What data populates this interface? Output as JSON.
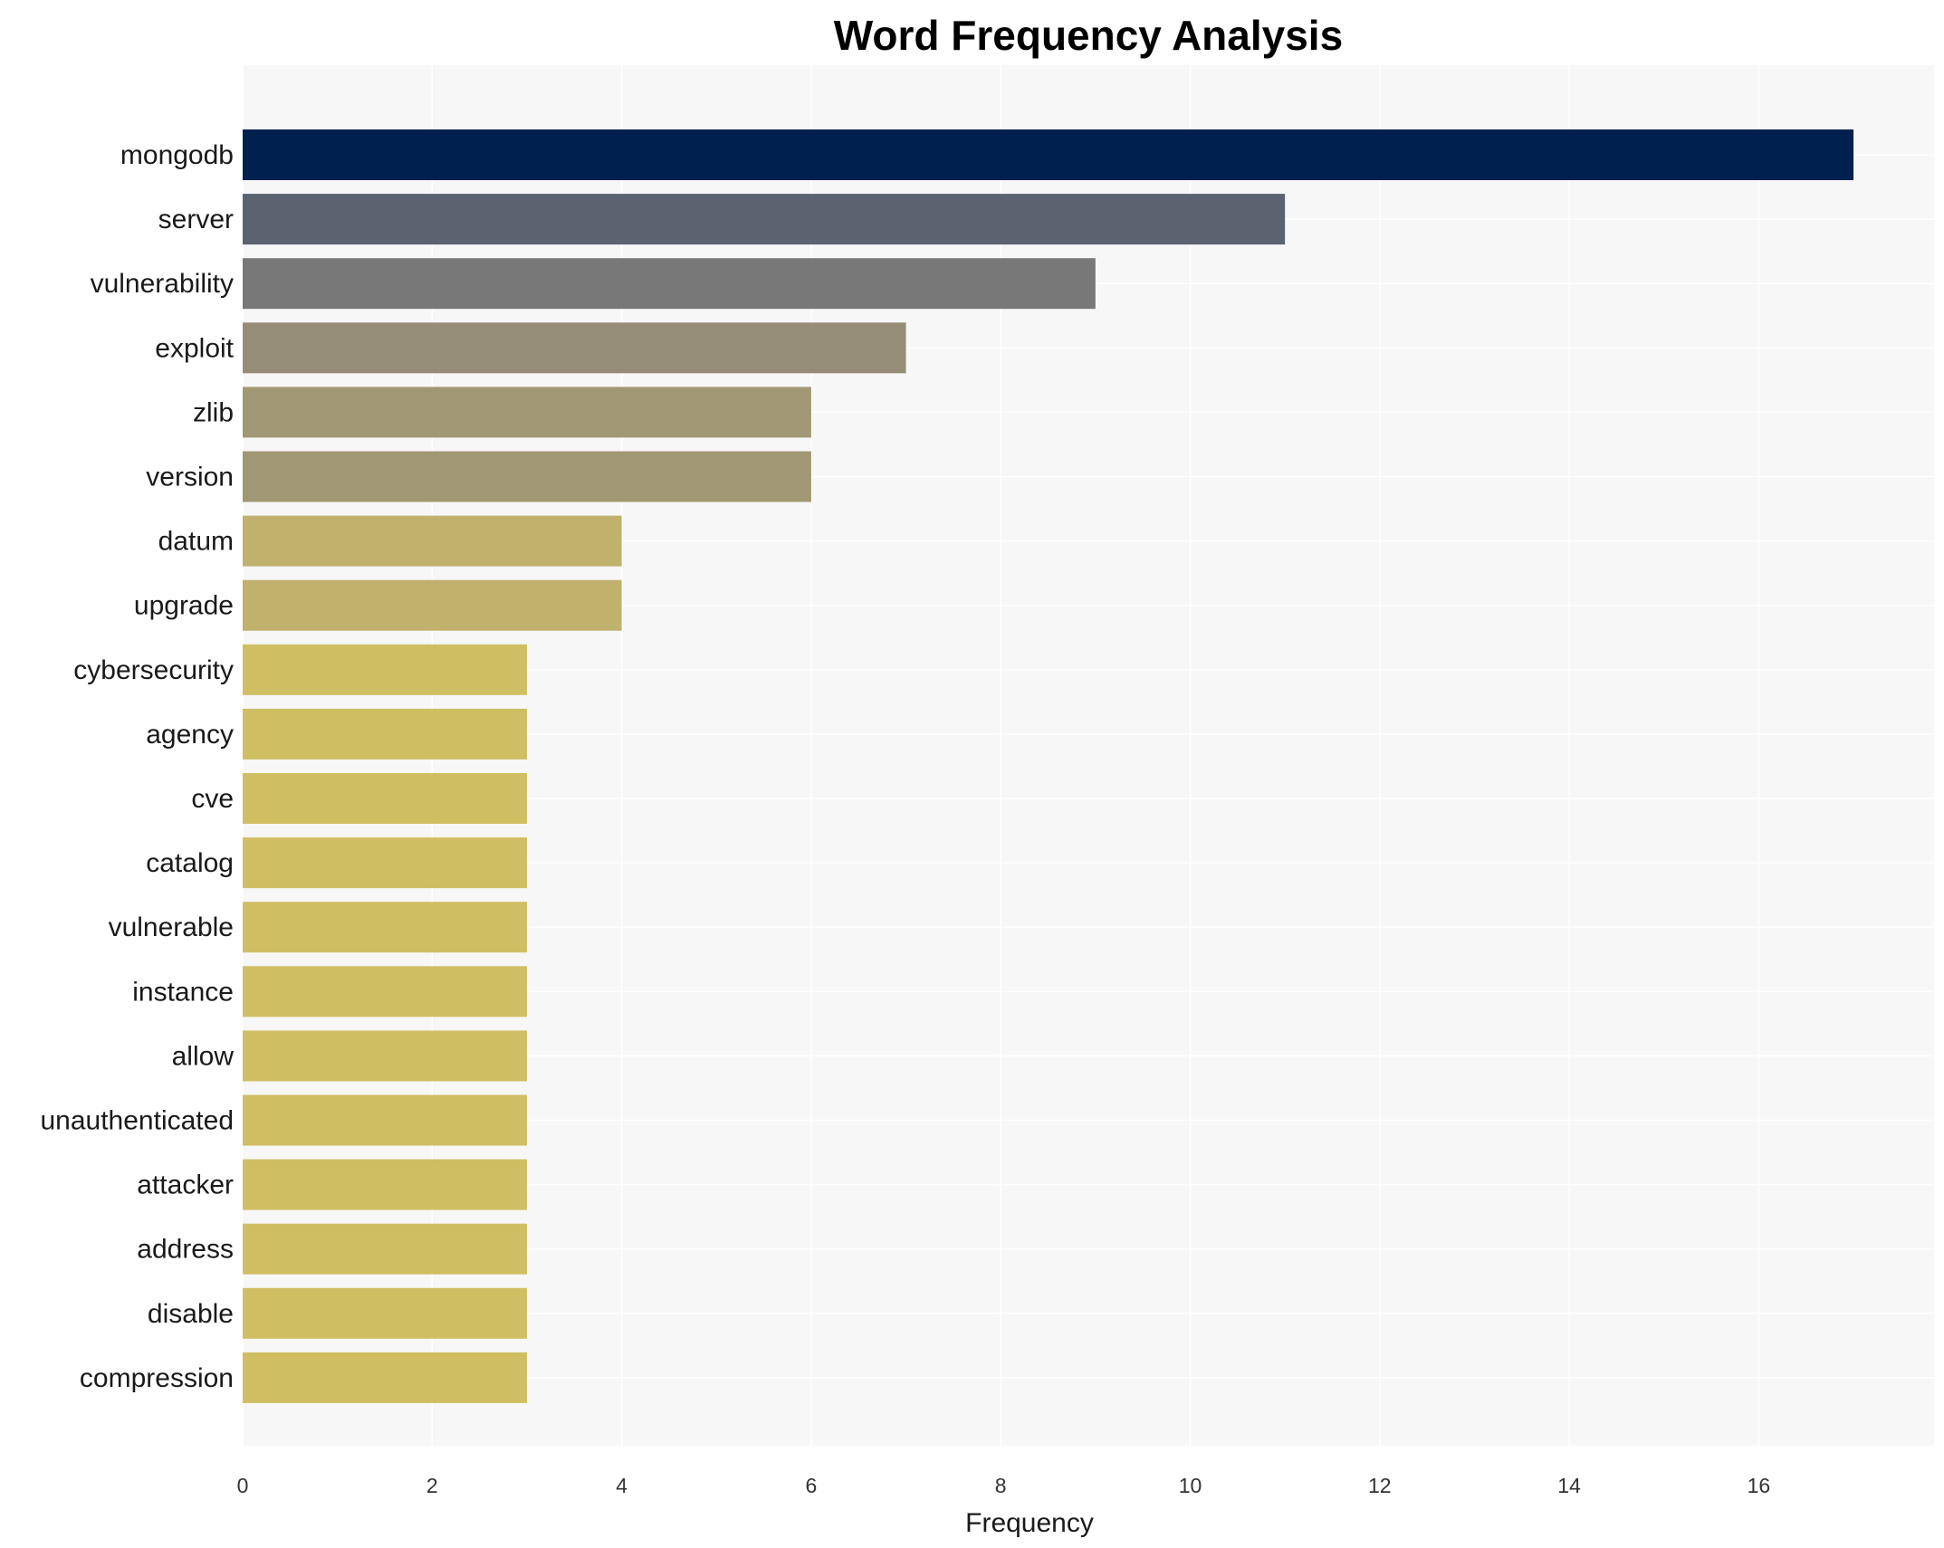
{
  "chart_data": {
    "type": "bar",
    "orientation": "horizontal",
    "title": "Word Frequency Analysis",
    "xlabel": "Frequency",
    "ylabel": "",
    "xlim": [
      0,
      17.85
    ],
    "xticks": [
      0,
      2,
      4,
      6,
      8,
      10,
      12,
      14,
      16
    ],
    "grid": true,
    "categories": [
      "mongodb",
      "server",
      "vulnerability",
      "exploit",
      "zlib",
      "version",
      "datum",
      "upgrade",
      "cybersecurity",
      "agency",
      "cve",
      "catalog",
      "vulnerable",
      "instance",
      "allow",
      "unauthenticated",
      "attacker",
      "address",
      "disable",
      "compression"
    ],
    "values": [
      17,
      11,
      9,
      7,
      6,
      6,
      4,
      4,
      3,
      3,
      3,
      3,
      3,
      3,
      3,
      3,
      3,
      3,
      3,
      3
    ],
    "colors": [
      "#00214f",
      "#5b6270",
      "#787878",
      "#958d77",
      "#a09874",
      "#a09874",
      "#c0b16d",
      "#c0b16d",
      "#cfbf62",
      "#cfbf62",
      "#cfbf62",
      "#cfbf62",
      "#cfbf62",
      "#cfbf62",
      "#cfbf62",
      "#cfbf62",
      "#cfbf62",
      "#cfbf62",
      "#cfbf62",
      "#cfbf62"
    ],
    "background": "#f7f7f7"
  }
}
